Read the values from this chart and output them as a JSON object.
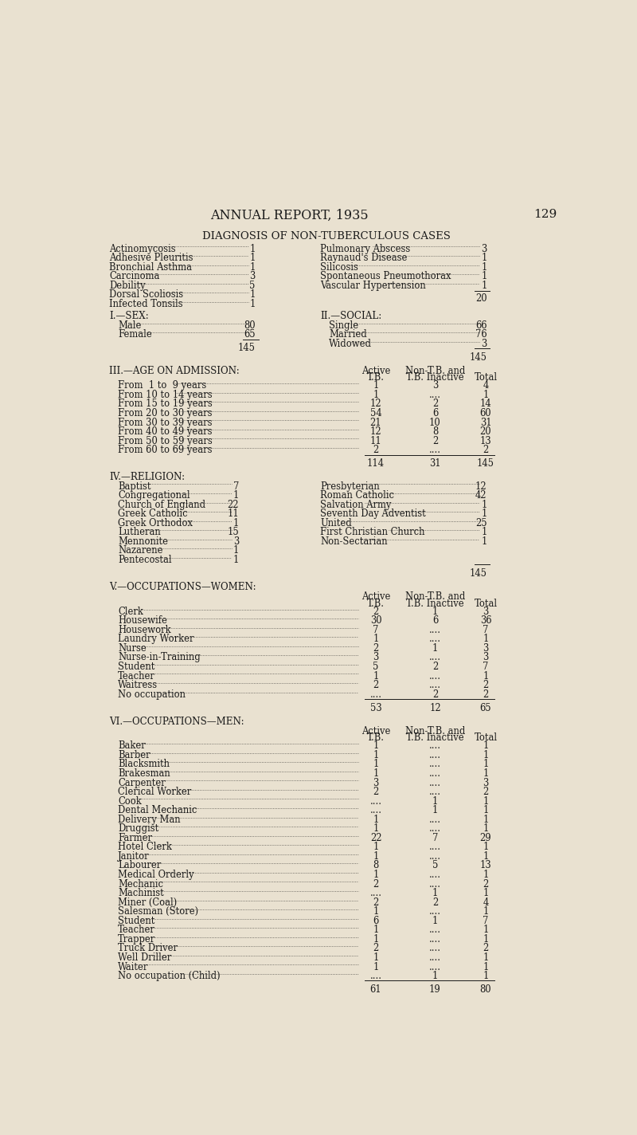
{
  "bg_color": "#e9e1d0",
  "text_color": "#1a1a1a",
  "title_main": "ANNUAL REPORT, 1935",
  "page_num": "129",
  "section_title": "DIAGNOSIS OF NON-TUBERCULOUS CASES",
  "diagnosis_left": [
    [
      "Actinomycosis",
      "1"
    ],
    [
      "Adhesive Pleuritis",
      "1"
    ],
    [
      "Bronchial Asthma",
      "1"
    ],
    [
      "Carcinoma",
      "3"
    ],
    [
      "Debility",
      "5"
    ],
    [
      "Dorsal Scoliosis",
      "1"
    ],
    [
      "Infected Tonsils",
      "1"
    ]
  ],
  "diagnosis_right": [
    [
      "Pulmonary Abscess",
      "3"
    ],
    [
      "Raynaud's Disease",
      "1"
    ],
    [
      "Silicosis",
      "1"
    ],
    [
      "Spontaneous Pneumothorax",
      "1"
    ],
    [
      "Vascular Hypertension",
      "1"
    ]
  ],
  "diag_total": "20",
  "sex_label": "I.—SEX:",
  "sex_data": [
    [
      "Male",
      "80"
    ],
    [
      "Female",
      "65"
    ]
  ],
  "sex_total": "145",
  "social_label": "II.—SOCIAL:",
  "social_data": [
    [
      "Single",
      "66"
    ],
    [
      "Married",
      "76"
    ],
    [
      "Widowed",
      "3"
    ]
  ],
  "social_total": "145",
  "age_label": "III.—AGE ON ADMISSION:",
  "age_data": [
    [
      "From  1 to  9 years",
      "1",
      "3",
      "4"
    ],
    [
      "From 10 to 14 years",
      "1",
      "....",
      "1"
    ],
    [
      "From 15 to 19 years",
      "12",
      "2",
      "14"
    ],
    [
      "From 20 to 30 years",
      "54",
      "6",
      "60"
    ],
    [
      "From 30 to 39 years",
      "21",
      "10",
      "31"
    ],
    [
      "From 40 to 49 years",
      "12",
      "8",
      "20"
    ],
    [
      "From 50 to 59 years",
      "11",
      "2",
      "13"
    ],
    [
      "From 60 to 69 years",
      "2",
      "....",
      "2"
    ]
  ],
  "age_totals": [
    "114",
    "31",
    "145"
  ],
  "religion_label": "IV.—RELIGION:",
  "religion_left": [
    [
      "Baptist",
      "7"
    ],
    [
      "Congregational",
      "1"
    ],
    [
      "Church of England",
      "22"
    ],
    [
      "Greek Catholic",
      "11"
    ],
    [
      "Greek Orthodox",
      "1"
    ],
    [
      "Lutheran",
      "15"
    ],
    [
      "Mennonite",
      "3"
    ],
    [
      "Nazarene",
      "1"
    ],
    [
      "Pentecostal",
      "1"
    ]
  ],
  "religion_right": [
    [
      "Presbyterian",
      "12"
    ],
    [
      "Roman Catholic",
      "42"
    ],
    [
      "Salvation Army",
      "1"
    ],
    [
      "Seventh Day Adventist",
      "1"
    ],
    [
      "United",
      "25"
    ],
    [
      "First Christian Church",
      "1"
    ],
    [
      "Non-Sectarian",
      "1"
    ]
  ],
  "religion_total": "145",
  "women_label": "V.—OCCUPATIONS—WOMEN:",
  "women_data": [
    [
      "Clerk",
      "2",
      "1",
      "3"
    ],
    [
      "Housewife",
      "30",
      "6",
      "36"
    ],
    [
      "Housework",
      "7",
      "....",
      "7"
    ],
    [
      "Laundry Worker",
      "1",
      "....",
      "1"
    ],
    [
      "Nurse",
      "2",
      "1",
      "3"
    ],
    [
      "Nurse-in-Training",
      "3",
      "....",
      "3"
    ],
    [
      "Student",
      "5",
      "2",
      "7"
    ],
    [
      "Teacher",
      "1",
      "....",
      "1"
    ],
    [
      "Waitress",
      "2",
      "....",
      "2"
    ],
    [
      "No occupation",
      "....",
      "2",
      "2"
    ]
  ],
  "women_totals": [
    "53",
    "12",
    "65"
  ],
  "men_label": "VI.—OCCUPATIONS—MEN:",
  "men_data": [
    [
      "Baker",
      "1",
      "....",
      "1"
    ],
    [
      "Barber",
      "1",
      "....",
      "1"
    ],
    [
      "Blacksmith",
      "1",
      "....",
      "1"
    ],
    [
      "Brakesman",
      "1",
      "....",
      "1"
    ],
    [
      "Carpenter",
      "3",
      "....",
      "3"
    ],
    [
      "Clerical Worker",
      "2",
      "....",
      "2"
    ],
    [
      "Cook",
      "....",
      "1",
      "1"
    ],
    [
      "Dental Mechanic",
      "....",
      "1",
      "1"
    ],
    [
      "Delivery Man",
      "1",
      "....",
      "1"
    ],
    [
      "Druggist",
      "1",
      "....",
      "1"
    ],
    [
      "Farmer",
      "22",
      "7",
      "29"
    ],
    [
      "Hotel Clerk",
      "1",
      "....",
      "1"
    ],
    [
      "Janitor",
      "1",
      "....",
      "1"
    ],
    [
      "Labourer",
      "8",
      "5",
      "13"
    ],
    [
      "Medical Orderly",
      "1",
      "....",
      "1"
    ],
    [
      "Mechanic",
      "2",
      "....",
      "2"
    ],
    [
      "Machinist",
      "....",
      "1",
      "1"
    ],
    [
      "Miner (Coal)",
      "2",
      "2",
      "4"
    ],
    [
      "Salesman (Store)",
      "1",
      "....",
      "1"
    ],
    [
      "Student",
      "6",
      "1",
      "7"
    ],
    [
      "Teacher",
      "1",
      "....",
      "1"
    ],
    [
      "Trapper",
      "1",
      "....",
      "1"
    ],
    [
      "Truck Driver",
      "2",
      "....",
      "2"
    ],
    [
      "Well Driller",
      "1",
      "....",
      "1"
    ],
    [
      "Waiter",
      "1",
      "....",
      "1"
    ],
    [
      "No occupation (Child)",
      "....",
      "1",
      "1"
    ]
  ],
  "men_totals": [
    "61",
    "19",
    "80"
  ]
}
